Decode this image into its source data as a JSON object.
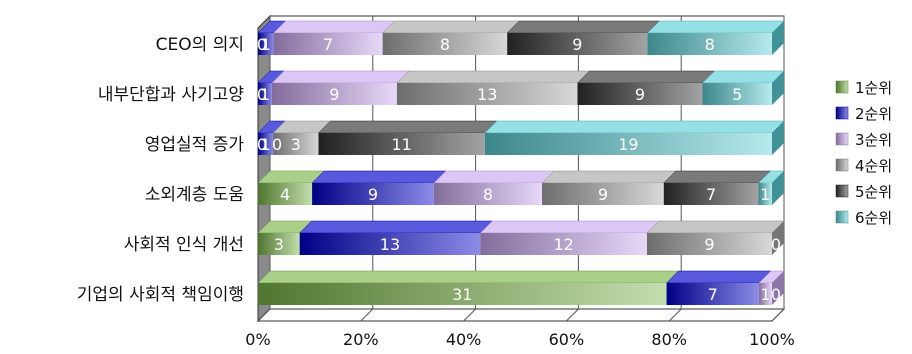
{
  "chart_data": {
    "type": "bar",
    "orientation": "horizontal",
    "stacked": "percent",
    "three_d": true,
    "title": "",
    "xlabel": "",
    "ylabel": "",
    "xlim": [
      0,
      100
    ],
    "x_ticks": [
      "0%",
      "20%",
      "40%",
      "60%",
      "80%",
      "100%"
    ],
    "grid": true,
    "legend_position": "right",
    "categories": [
      "CEO의 의지",
      "내부단합과 사기고양",
      "영업실적 증가",
      "소외계층 도움",
      "사회적 인식 개선",
      "기업의 사회적 책임이행"
    ],
    "series": [
      {
        "name": "1순위",
        "color": "#7ab648",
        "values": [
          0,
          0,
          0,
          4,
          3,
          31
        ]
      },
      {
        "name": "2순위",
        "color": "#0000cc",
        "values": [
          1,
          1,
          1,
          9,
          13,
          7
        ]
      },
      {
        "name": "3순위",
        "color": "#c9a8f0",
        "values": [
          7,
          9,
          0,
          8,
          12,
          1
        ]
      },
      {
        "name": "4순위",
        "color": "#a8a8a8",
        "values": [
          8,
          13,
          3,
          9,
          9,
          0
        ]
      },
      {
        "name": "5순위",
        "color": "#333333",
        "values": [
          9,
          9,
          11,
          7,
          0,
          0
        ]
      },
      {
        "name": "6순위",
        "color": "#5cd0d6",
        "values": [
          8,
          5,
          19,
          1,
          0,
          0
        ]
      }
    ],
    "data_labels": [
      [
        "0",
        "1",
        "7",
        "8",
        "9",
        "8"
      ],
      [
        "0",
        "1",
        "9",
        "13",
        "9",
        "5"
      ],
      [
        "0",
        "1",
        "0",
        "3",
        "11",
        "19"
      ],
      [
        "4",
        "9",
        "8",
        "9",
        "7",
        "1"
      ],
      [
        "3",
        "13",
        "12",
        "9",
        "0",
        ""
      ],
      [
        "31",
        "7",
        "1",
        "0",
        "",
        ""
      ]
    ]
  }
}
